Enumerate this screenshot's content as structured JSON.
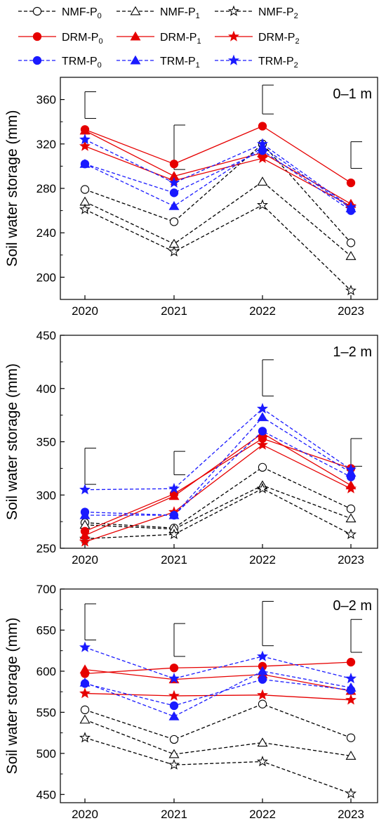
{
  "legend": {
    "placement": "top",
    "entries": [
      {
        "series": "NMF-P0",
        "base": "NMF-P",
        "sub": "0"
      },
      {
        "series": "NMF-P1",
        "base": "NMF-P",
        "sub": "1"
      },
      {
        "series": "NMF-P2",
        "base": "NMF-P",
        "sub": "2"
      },
      {
        "series": "DRM-P0",
        "base": "DRM-P",
        "sub": "0"
      },
      {
        "series": "DRM-P1",
        "base": "DRM-P",
        "sub": "1"
      },
      {
        "series": "DRM-P2",
        "base": "DRM-P",
        "sub": "2"
      },
      {
        "series": "TRM-P0",
        "base": "TRM-P",
        "sub": "0"
      },
      {
        "series": "TRM-P1",
        "base": "TRM-P",
        "sub": "1"
      },
      {
        "series": "TRM-P2",
        "base": "TRM-P",
        "sub": "2"
      }
    ]
  },
  "colors": {
    "NMF": "#000000",
    "DRM": "#e60000",
    "TRM": "#1a1aff"
  },
  "markers": {
    "P0": "circle",
    "P1": "triangle",
    "P2": "star"
  },
  "chart_data": [
    {
      "type": "line",
      "panel_label": "0–1 m",
      "xlabel": "",
      "ylabel": "Soil water storage (mm)",
      "categories": [
        "2020",
        "2021",
        "2022",
        "2023"
      ],
      "ylim": [
        180,
        380
      ],
      "yticks": [
        200,
        240,
        280,
        320,
        360
      ],
      "grid": false,
      "error_bars": [
        {
          "center": 355,
          "half": 12
        },
        {
          "center": 317,
          "half": 20
        },
        {
          "center": 360,
          "half": 13
        },
        {
          "center": 310,
          "half": 12
        }
      ],
      "series": [
        {
          "name": "NMF-P0",
          "values": [
            279,
            250,
            320,
            231
          ]
        },
        {
          "name": "NMF-P1",
          "values": [
            268,
            230,
            286,
            219
          ]
        },
        {
          "name": "NMF-P2",
          "values": [
            261,
            223,
            265,
            188
          ]
        },
        {
          "name": "DRM-P0",
          "values": [
            333,
            302,
            336,
            285
          ]
        },
        {
          "name": "DRM-P1",
          "values": [
            332,
            291,
            312,
            266
          ]
        },
        {
          "name": "DRM-P2",
          "values": [
            318,
            287,
            307,
            264
          ]
        },
        {
          "name": "TRM-P0",
          "values": [
            302,
            276,
            314,
            260
          ]
        },
        {
          "name": "TRM-P1",
          "values": [
            302,
            264,
            317,
            262
          ]
        },
        {
          "name": "TRM-P2",
          "values": [
            324,
            285,
            320,
            263
          ]
        }
      ]
    },
    {
      "type": "line",
      "panel_label": "1–2 m",
      "xlabel": "",
      "ylabel": "Soil water storage (mm)",
      "categories": [
        "2020",
        "2021",
        "2022",
        "2023"
      ],
      "ylim": [
        250,
        450
      ],
      "yticks": [
        250,
        300,
        350,
        400,
        450
      ],
      "grid": false,
      "error_bars": [
        {
          "center": 327,
          "half": 17
        },
        {
          "center": 330,
          "half": 11
        },
        {
          "center": 410,
          "half": 17
        },
        {
          "center": 340,
          "half": 13
        }
      ],
      "series": [
        {
          "name": "NMF-P0",
          "values": [
            274,
            269,
            326,
            287
          ]
        },
        {
          "name": "NMF-P1",
          "values": [
            272,
            268,
            309,
            278
          ]
        },
        {
          "name": "NMF-P2",
          "values": [
            259,
            263,
            306,
            263
          ]
        },
        {
          "name": "DRM-P0",
          "values": [
            266,
            301,
            353,
            325
          ]
        },
        {
          "name": "DRM-P1",
          "values": [
            262,
            299,
            358,
            309
          ]
        },
        {
          "name": "DRM-P2",
          "values": [
            256,
            284,
            347,
            306
          ]
        },
        {
          "name": "TRM-P0",
          "values": [
            284,
            281,
            360,
            317
          ]
        },
        {
          "name": "TRM-P1",
          "values": [
            281,
            281,
            373,
            321
          ]
        },
        {
          "name": "TRM-P2",
          "values": [
            305,
            306,
            381,
            324
          ]
        }
      ]
    },
    {
      "type": "line",
      "panel_label": "0–2 m",
      "xlabel": "",
      "ylabel": "Soil water storage (mm)",
      "categories": [
        "2020",
        "2021",
        "2022",
        "2023"
      ],
      "ylim": [
        440,
        700
      ],
      "yticks": [
        450,
        500,
        550,
        600,
        650,
        700
      ],
      "grid": false,
      "error_bars": [
        {
          "center": 660,
          "half": 22
        },
        {
          "center": 638,
          "half": 20
        },
        {
          "center": 658,
          "half": 27
        },
        {
          "center": 643,
          "half": 20
        }
      ],
      "series": [
        {
          "name": "NMF-P0",
          "values": [
            553,
            517,
            560,
            519
          ]
        },
        {
          "name": "NMF-P1",
          "values": [
            541,
            499,
            513,
            497
          ]
        },
        {
          "name": "NMF-P2",
          "values": [
            519,
            486,
            490,
            451
          ]
        },
        {
          "name": "DRM-P0",
          "values": [
            597,
            604,
            606,
            611
          ]
        },
        {
          "name": "DRM-P1",
          "values": [
            602,
            590,
            596,
            576
          ]
        },
        {
          "name": "DRM-P2",
          "values": [
            573,
            570,
            571,
            565
          ]
        },
        {
          "name": "TRM-P0",
          "values": [
            585,
            558,
            590,
            577
          ]
        },
        {
          "name": "TRM-P1",
          "values": [
            586,
            545,
            600,
            580
          ]
        },
        {
          "name": "TRM-P2",
          "values": [
            629,
            591,
            618,
            591
          ]
        }
      ]
    }
  ]
}
